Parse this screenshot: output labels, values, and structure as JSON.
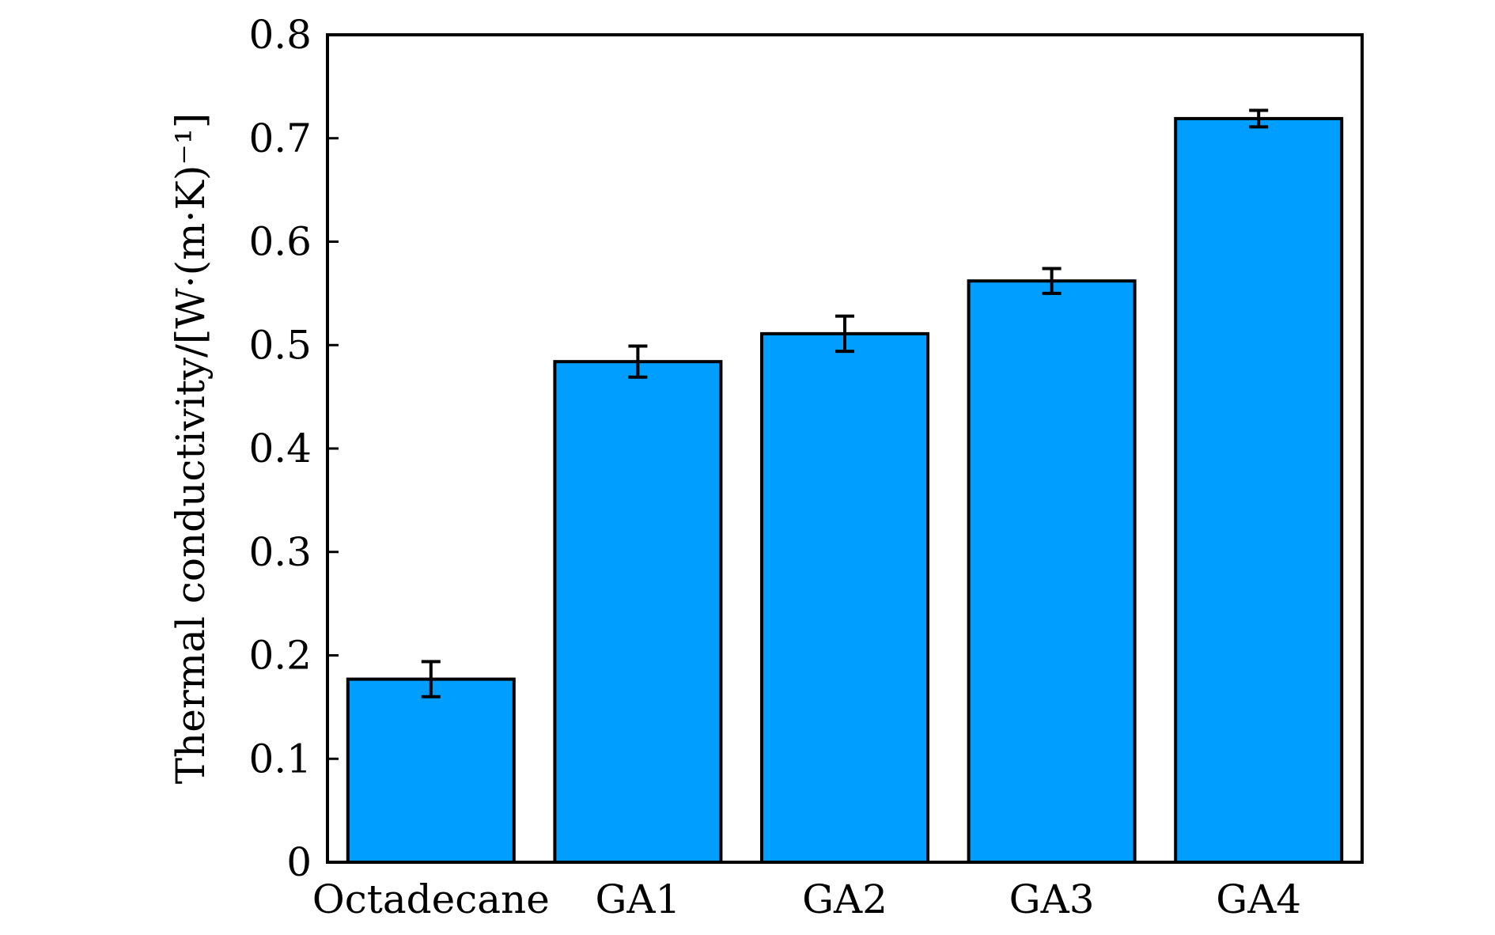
{
  "chart_data": {
    "type": "bar",
    "title": "",
    "xlabel": "",
    "ylabel": "Thermal conductivity/[W·(m·K)⁻¹]",
    "categories": [
      "Octadecane",
      "GA1",
      "GA2",
      "GA3",
      "GA4"
    ],
    "values": [
      0.177,
      0.484,
      0.511,
      0.562,
      0.719
    ],
    "errors": [
      0.017,
      0.015,
      0.017,
      0.012,
      0.008
    ],
    "ylim": [
      0,
      0.8
    ],
    "yticks": [
      0,
      0.1,
      0.2,
      0.3,
      0.4,
      0.5,
      0.6,
      0.7,
      0.8
    ],
    "ytick_labels": [
      "0",
      "0.1",
      "0.2",
      "0.3",
      "0.4",
      "0.5",
      "0.6",
      "0.7",
      "0.8"
    ],
    "grid": false,
    "legend": "none",
    "colors": {
      "bar_fill": "#009FFF",
      "bar_stroke": "#000000",
      "axis": "#000000",
      "background": "#FFFFFF"
    }
  }
}
